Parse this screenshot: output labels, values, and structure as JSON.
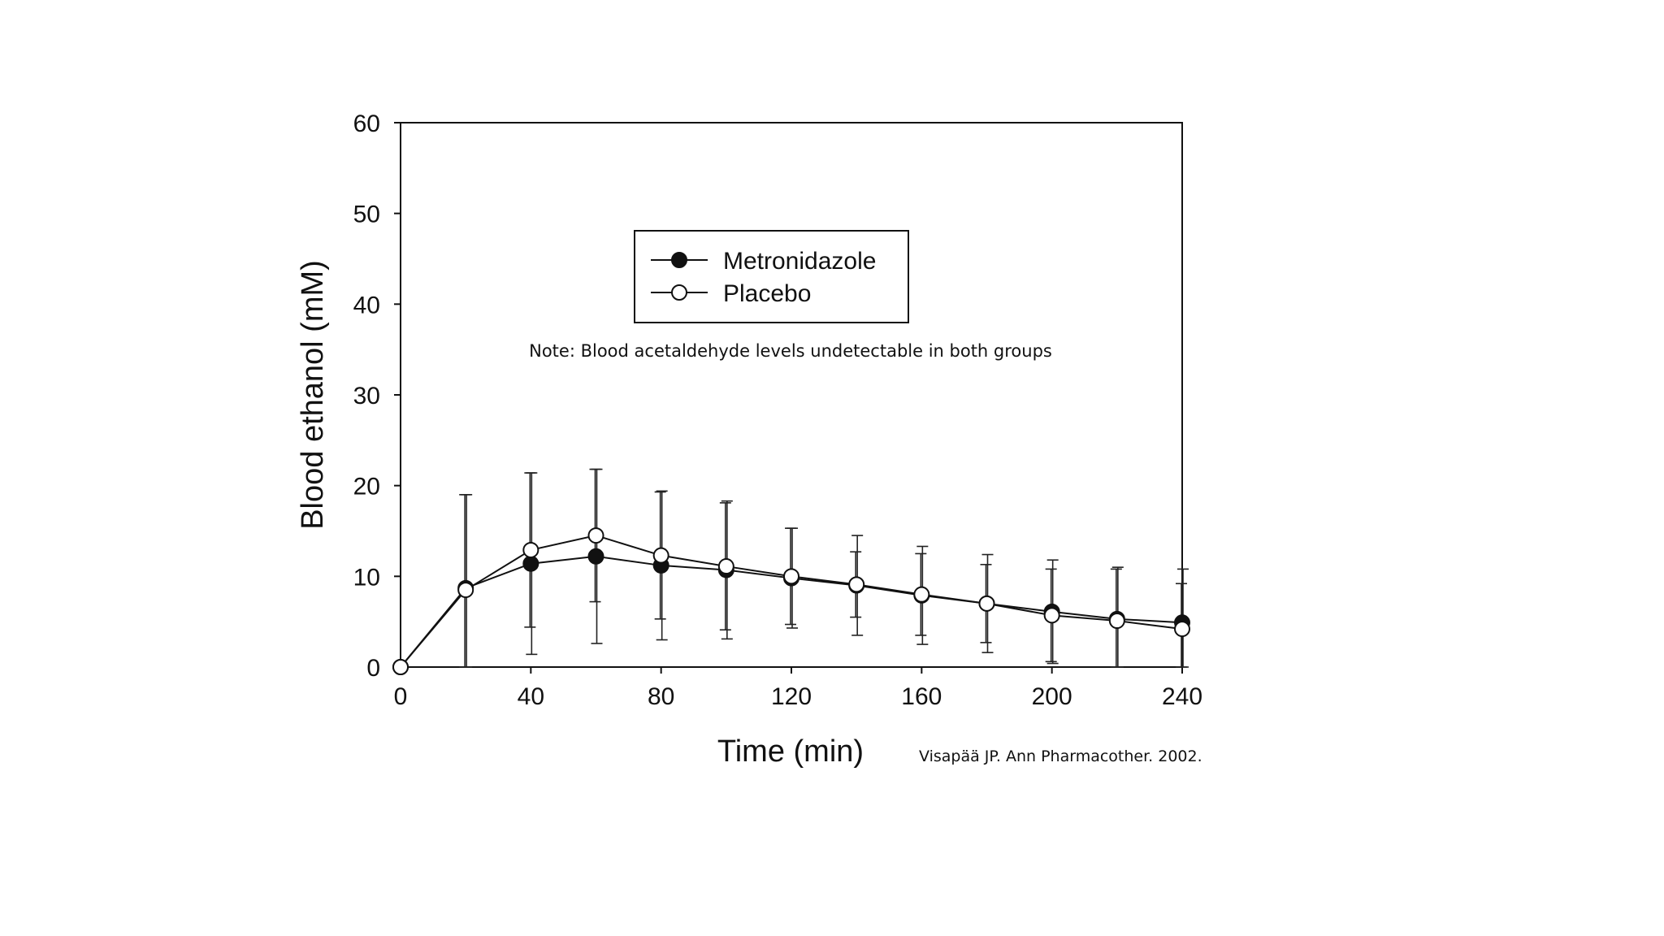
{
  "chart_data": {
    "type": "line",
    "title": "",
    "xlabel": "Time (min)",
    "ylabel": "Blood ethanol (mM)",
    "xlim": [
      0,
      240
    ],
    "ylim": [
      0,
      60
    ],
    "xticks": [
      0,
      40,
      80,
      120,
      160,
      200,
      240
    ],
    "yticks": [
      0,
      10,
      20,
      30,
      40,
      50,
      60
    ],
    "grid": false,
    "legend_position": "top-center",
    "x": [
      0,
      20,
      40,
      60,
      80,
      100,
      120,
      140,
      160,
      180,
      200,
      220,
      240
    ],
    "series": [
      {
        "name": "Metronidazole",
        "marker": "filled-circle",
        "values": [
          0,
          8.7,
          11.4,
          12.2,
          11.2,
          10.7,
          9.8,
          9.0,
          7.9,
          7.0,
          6.1,
          5.3,
          4.9
        ],
        "error": [
          0,
          10.3,
          10.0,
          9.6,
          8.2,
          7.6,
          5.5,
          5.5,
          5.4,
          5.4,
          5.7,
          5.7,
          5.9
        ]
      },
      {
        "name": "Placebo",
        "marker": "open-circle",
        "values": [
          0,
          8.5,
          12.9,
          14.5,
          12.3,
          11.1,
          10.0,
          9.1,
          8.0,
          7.0,
          5.7,
          5.1,
          4.2
        ],
        "error": [
          0,
          10.5,
          8.5,
          7.3,
          7.0,
          7.0,
          5.3,
          3.6,
          4.5,
          4.3,
          5.1,
          5.7,
          5.0
        ]
      }
    ],
    "annotations": [
      "Note: Blood acetaldehyde levels undetectable in both groups",
      "Visapää JP. Ann Pharmacother. 2002."
    ]
  }
}
